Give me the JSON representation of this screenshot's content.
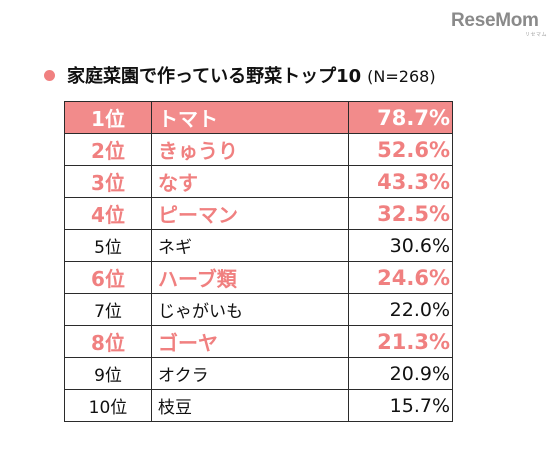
{
  "brand": {
    "logo_text": "ReseMom",
    "logo_subtext": "リセマム"
  },
  "accent_color": "#f08080",
  "chart_data": {
    "type": "table",
    "title": "家庭菜園で作っている野菜トップ10",
    "sample_size": "(N=268)",
    "rows": [
      {
        "rank": "1位",
        "name": "トマト",
        "pct_label": "78.7%",
        "value": 78.7,
        "highlight": true,
        "top": true
      },
      {
        "rank": "2位",
        "name": "きゅうり",
        "pct_label": "52.6%",
        "value": 52.6,
        "highlight": true
      },
      {
        "rank": "3位",
        "name": "なす",
        "pct_label": "43.3%",
        "value": 43.3,
        "highlight": true
      },
      {
        "rank": "4位",
        "name": "ピーマン",
        "pct_label": "32.5%",
        "value": 32.5,
        "highlight": true
      },
      {
        "rank": "5位",
        "name": "ネギ",
        "pct_label": "30.6%",
        "value": 30.6,
        "highlight": false
      },
      {
        "rank": "6位",
        "name": "ハーブ類",
        "pct_label": "24.6%",
        "value": 24.6,
        "highlight": true
      },
      {
        "rank": "7位",
        "name": "じゃがいも",
        "pct_label": "22.0%",
        "value": 22.0,
        "highlight": false
      },
      {
        "rank": "8位",
        "name": "ゴーヤ",
        "pct_label": "21.3%",
        "value": 21.3,
        "highlight": true
      },
      {
        "rank": "9位",
        "name": "オクラ",
        "pct_label": "20.9%",
        "value": 20.9,
        "highlight": false
      },
      {
        "rank": "10位",
        "name": "枝豆",
        "pct_label": "15.7%",
        "value": 15.7,
        "highlight": false
      }
    ]
  }
}
